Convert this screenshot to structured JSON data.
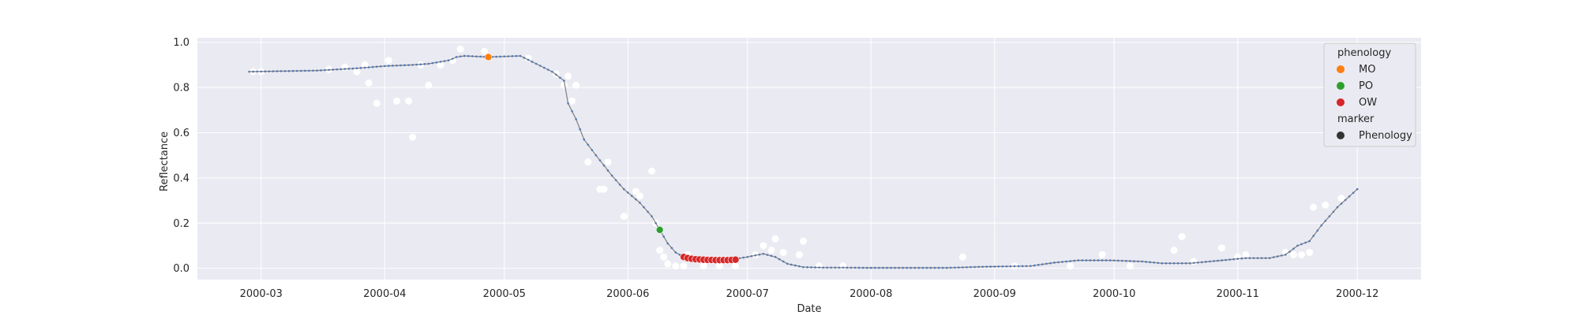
{
  "chart_data": {
    "type": "scatter",
    "xlabel": "Date",
    "ylabel": "Reflectance",
    "xlim": [
      "2000-02-14",
      "2000-12-17"
    ],
    "ylim": [
      -0.05,
      1.02
    ],
    "grid": true,
    "x_ticks": [
      "2000-03",
      "2000-04",
      "2000-05",
      "2000-06",
      "2000-07",
      "2000-08",
      "2000-09",
      "2000-10",
      "2000-11",
      "2000-12"
    ],
    "y_ticks": [
      "0.0",
      "0.2",
      "0.4",
      "0.6",
      "0.8",
      "1.0"
    ],
    "legend_position": "top-right",
    "legend": {
      "phenology_title": "phenology",
      "marker_title": "marker",
      "entries": [
        {
          "label": "MO",
          "color": "#ff7f0e"
        },
        {
          "label": "PO",
          "color": "#2ca02c"
        },
        {
          "label": "OW",
          "color": "#d62728"
        }
      ],
      "marker_entries": [
        {
          "label": "Phenology",
          "color": "#333333"
        }
      ]
    },
    "colors": {
      "background": "#eaeaf2",
      "observations": "#ffffff",
      "curve": "#808080",
      "curve_points": "#4c72b0"
    },
    "series": [
      {
        "role": "observations",
        "points": [
          [
            "2000-02-28",
            0.87
          ],
          [
            "2000-03-01",
            0.87
          ],
          [
            "2000-03-18",
            0.88
          ],
          [
            "2000-03-22",
            0.89
          ],
          [
            "2000-03-25",
            0.87
          ],
          [
            "2000-03-27",
            0.9
          ],
          [
            "2000-03-28",
            0.82
          ],
          [
            "2000-03-30",
            0.73
          ],
          [
            "2000-04-02",
            0.92
          ],
          [
            "2000-04-04",
            0.74
          ],
          [
            "2000-04-07",
            0.74
          ],
          [
            "2000-04-08",
            0.58
          ],
          [
            "2000-04-10",
            0.9
          ],
          [
            "2000-04-12",
            0.81
          ],
          [
            "2000-04-15",
            0.9
          ],
          [
            "2000-04-18",
            0.92
          ],
          [
            "2000-04-20",
            0.97
          ],
          [
            "2000-04-26",
            0.96
          ],
          [
            "2000-05-07",
            0.93
          ],
          [
            "2000-05-14",
            0.86
          ],
          [
            "2000-05-16",
            0.81
          ],
          [
            "2000-05-17",
            0.85
          ],
          [
            "2000-05-18",
            0.74
          ],
          [
            "2000-05-19",
            0.81
          ],
          [
            "2000-05-22",
            0.47
          ],
          [
            "2000-05-25",
            0.35
          ],
          [
            "2000-05-26",
            0.35
          ],
          [
            "2000-05-27",
            0.47
          ],
          [
            "2000-05-31",
            0.23
          ],
          [
            "2000-06-03",
            0.34
          ],
          [
            "2000-06-04",
            0.32
          ],
          [
            "2000-06-07",
            0.43
          ],
          [
            "2000-06-08",
            0.2
          ],
          [
            "2000-06-09",
            0.08
          ],
          [
            "2000-06-10",
            0.05
          ],
          [
            "2000-06-11",
            0.02
          ],
          [
            "2000-06-13",
            0.01
          ],
          [
            "2000-06-15",
            0.01
          ],
          [
            "2000-06-16",
            0.06
          ],
          [
            "2000-06-20",
            0.01
          ],
          [
            "2000-06-24",
            0.01
          ],
          [
            "2000-06-28",
            0.01
          ],
          [
            "2000-07-03",
            0.06
          ],
          [
            "2000-07-05",
            0.1
          ],
          [
            "2000-07-07",
            0.08
          ],
          [
            "2000-07-08",
            0.13
          ],
          [
            "2000-07-10",
            0.07
          ],
          [
            "2000-07-14",
            0.06
          ],
          [
            "2000-07-15",
            0.12
          ],
          [
            "2000-07-19",
            0.01
          ],
          [
            "2000-07-25",
            0.01
          ],
          [
            "2000-08-24",
            0.05
          ],
          [
            "2000-09-06",
            0.01
          ],
          [
            "2000-09-20",
            0.01
          ],
          [
            "2000-09-28",
            0.06
          ],
          [
            "2000-10-05",
            0.01
          ],
          [
            "2000-10-16",
            0.08
          ],
          [
            "2000-10-18",
            0.14
          ],
          [
            "2000-10-21",
            0.03
          ],
          [
            "2000-10-28",
            0.09
          ],
          [
            "2000-11-01",
            0.05
          ],
          [
            "2000-11-03",
            0.06
          ],
          [
            "2000-11-13",
            0.07
          ],
          [
            "2000-11-15",
            0.06
          ],
          [
            "2000-11-17",
            0.06
          ],
          [
            "2000-11-19",
            0.07
          ],
          [
            "2000-11-20",
            0.27
          ],
          [
            "2000-11-23",
            0.28
          ],
          [
            "2000-11-27",
            0.31
          ]
        ]
      },
      {
        "role": "fitted-curve",
        "points": [
          [
            "2000-02-27",
            0.87
          ],
          [
            "2000-03-15",
            0.875
          ],
          [
            "2000-03-25",
            0.885
          ],
          [
            "2000-04-01",
            0.895
          ],
          [
            "2000-04-08",
            0.9
          ],
          [
            "2000-04-12",
            0.905
          ],
          [
            "2000-04-17",
            0.92
          ],
          [
            "2000-04-19",
            0.935
          ],
          [
            "2000-04-21",
            0.94
          ],
          [
            "2000-04-27",
            0.935
          ],
          [
            "2000-05-05",
            0.94
          ],
          [
            "2000-05-09",
            0.905
          ],
          [
            "2000-05-13",
            0.87
          ],
          [
            "2000-05-16",
            0.83
          ],
          [
            "2000-05-17",
            0.73
          ],
          [
            "2000-05-19",
            0.66
          ],
          [
            "2000-05-21",
            0.57
          ],
          [
            "2000-05-24",
            0.5
          ],
          [
            "2000-05-28",
            0.41
          ],
          [
            "2000-05-31",
            0.35
          ],
          [
            "2000-06-04",
            0.29
          ],
          [
            "2000-06-07",
            0.23
          ],
          [
            "2000-06-09",
            0.17
          ],
          [
            "2000-06-11",
            0.11
          ],
          [
            "2000-06-13",
            0.07
          ],
          [
            "2000-06-15",
            0.05
          ],
          [
            "2000-06-20",
            0.038
          ],
          [
            "2000-06-26",
            0.036
          ],
          [
            "2000-07-01",
            0.05
          ],
          [
            "2000-07-05",
            0.064
          ],
          [
            "2000-07-08",
            0.05
          ],
          [
            "2000-07-11",
            0.02
          ],
          [
            "2000-07-15",
            0.005
          ],
          [
            "2000-07-20",
            0.003
          ],
          [
            "2000-07-25",
            0.003
          ],
          [
            "2000-07-31",
            0.002
          ],
          [
            "2000-08-10",
            0.002
          ],
          [
            "2000-08-20",
            0.002
          ],
          [
            "2000-08-30",
            0.007
          ],
          [
            "2000-09-10",
            0.01
          ],
          [
            "2000-09-16",
            0.025
          ],
          [
            "2000-09-22",
            0.035
          ],
          [
            "2000-09-30",
            0.035
          ],
          [
            "2000-10-08",
            0.03
          ],
          [
            "2000-10-13",
            0.022
          ],
          [
            "2000-10-20",
            0.022
          ],
          [
            "2000-10-28",
            0.035
          ],
          [
            "2000-11-03",
            0.045
          ],
          [
            "2000-11-09",
            0.045
          ],
          [
            "2000-11-13",
            0.06
          ],
          [
            "2000-11-16",
            0.1
          ],
          [
            "2000-11-19",
            0.12
          ],
          [
            "2000-11-22",
            0.19
          ],
          [
            "2000-11-26",
            0.27
          ],
          [
            "2000-12-01",
            0.35
          ]
        ]
      },
      {
        "name": "MO",
        "role": "phenology",
        "color": "#ff7f0e",
        "points": [
          [
            "2000-04-27",
            0.935
          ]
        ]
      },
      {
        "name": "PO",
        "role": "phenology",
        "color": "#2ca02c",
        "points": [
          [
            "2000-06-09",
            0.17
          ]
        ]
      },
      {
        "name": "OW",
        "role": "phenology",
        "color": "#d62728",
        "points": [
          [
            "2000-06-15",
            0.05
          ],
          [
            "2000-06-16",
            0.045
          ],
          [
            "2000-06-17",
            0.042
          ],
          [
            "2000-06-18",
            0.04
          ],
          [
            "2000-06-19",
            0.039
          ],
          [
            "2000-06-20",
            0.038
          ],
          [
            "2000-06-21",
            0.037
          ],
          [
            "2000-06-22",
            0.037
          ],
          [
            "2000-06-23",
            0.036
          ],
          [
            "2000-06-24",
            0.036
          ],
          [
            "2000-06-25",
            0.036
          ],
          [
            "2000-06-26",
            0.036
          ],
          [
            "2000-06-27",
            0.037
          ],
          [
            "2000-06-28",
            0.038
          ]
        ]
      }
    ]
  }
}
